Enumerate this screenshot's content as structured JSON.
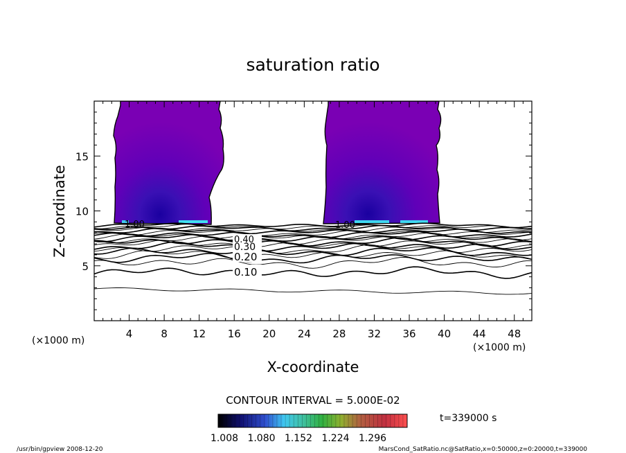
{
  "chart_data": {
    "type": "contour",
    "title": "saturation ratio",
    "xlabel": "X-coordinate",
    "ylabel": "Z-coordinate",
    "x_unit": "(×1000 m)",
    "z_unit": "(×1000 m)",
    "xlim": [
      0,
      50
    ],
    "ylim": [
      0,
      20
    ],
    "x_ticks": [
      "4",
      "8",
      "12",
      "16",
      "20",
      "24",
      "28",
      "32",
      "36",
      "40",
      "44",
      "48"
    ],
    "y_ticks": [
      "5",
      "10",
      "15"
    ],
    "contour_interval_text": "CONTOUR INTERVAL = 5.000E-02",
    "time_text": "t=339000 s",
    "colorbar_ticks": [
      "1.008",
      "1.080",
      "1.152",
      "1.224",
      "1.296"
    ],
    "contour_levels": [
      0.1,
      0.15,
      0.2,
      0.25,
      0.3,
      0.35,
      0.4,
      0.45,
      0.5,
      0.55,
      0.6,
      0.65,
      0.7,
      0.75,
      0.8,
      0.85,
      0.9,
      0.95,
      1.0
    ],
    "contour_labels": [
      "0.10",
      "0.20",
      "0.30",
      "0.40",
      "1.00",
      "1.00"
    ],
    "footer_left": "/usr/bin/gpview   2008-12-20",
    "footer_right": "MarsCond_SatRatio.nc@SatRatio,x=0:50000,z=0:20000,t=339000",
    "colors": {
      "supersaturated_fill": "#7a00b4",
      "colorbar_low": "#000000",
      "colorbar_high": "#ff4040"
    }
  }
}
